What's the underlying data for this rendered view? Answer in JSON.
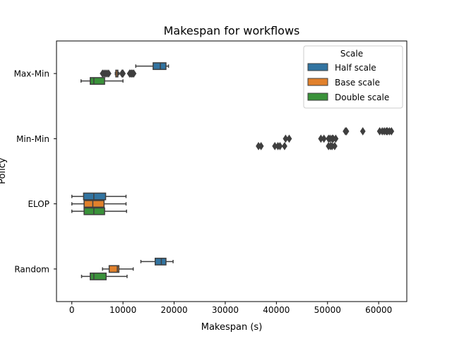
{
  "chart_data": {
    "type": "box",
    "orientation": "horizontal",
    "title": "Makespan for workflows",
    "xlabel": "Makespan (s)",
    "ylabel": "Policy",
    "xlim": [
      -3000,
      65500
    ],
    "xticks": [
      0,
      10000,
      20000,
      30000,
      40000,
      50000,
      60000
    ],
    "xtick_labels": [
      "0",
      "10000",
      "20000",
      "30000",
      "40000",
      "50000",
      "60000"
    ],
    "categories": [
      "Max-Min",
      "Min-Min",
      "ELOP",
      "Random"
    ],
    "legend": {
      "title": "Scale",
      "position": "upper-right"
    },
    "grid": false,
    "series": [
      {
        "name": "Half scale",
        "color": "#3274a1",
        "boxes": [
          {
            "category": "Max-Min",
            "whisker_low": 12500,
            "q1": 15900,
            "median": 17300,
            "q3": 18400,
            "whisker_high": 18900,
            "outliers": []
          },
          {
            "category": "Min-Min",
            "whisker_low": null,
            "q1": null,
            "median": null,
            "q3": null,
            "whisker_high": null,
            "outliers": [
              53500,
              53700,
              56900,
              60200,
              60700,
              61100,
              61500,
              61700,
              62100,
              62500
            ]
          },
          {
            "category": "ELOP",
            "whisker_low": 0,
            "q1": 2300,
            "median": 4300,
            "q3": 6600,
            "whisker_high": 10600,
            "outliers": []
          },
          {
            "category": "Random",
            "whisker_low": 13500,
            "q1": 16300,
            "median": 17500,
            "q3": 18400,
            "whisker_high": 19800,
            "outliers": []
          }
        ]
      },
      {
        "name": "Base scale",
        "color": "#e1812c",
        "boxes": [
          {
            "category": "Max-Min",
            "whisker_low": 8500,
            "q1": 8600,
            "median": 8900,
            "q3": 9000,
            "whisker_high": 9200,
            "outliers": [
              6000,
              6300,
              6600,
              6900,
              7200,
              9800,
              9900,
              10000,
              11300,
              11500,
              11700,
              11900,
              12100
            ]
          },
          {
            "category": "Min-Min",
            "whisker_low": null,
            "q1": null,
            "median": null,
            "q3": null,
            "whisker_high": null,
            "outliers": [
              41800,
              42500,
              48700,
              49300,
              50200,
              50500,
              50900,
              51100,
              51600
            ]
          },
          {
            "category": "ELOP",
            "whisker_low": 0,
            "q1": 2400,
            "median": 4100,
            "q3": 6300,
            "whisker_high": 10600,
            "outliers": []
          },
          {
            "category": "Random",
            "whisker_low": 6000,
            "q1": 7300,
            "median": 8900,
            "q3": 9200,
            "whisker_high": 12000,
            "outliers": []
          }
        ]
      },
      {
        "name": "Double scale",
        "color": "#3a923a",
        "boxes": [
          {
            "category": "Max-Min",
            "whisker_low": 1800,
            "q1": 3600,
            "median": 4300,
            "q3": 6400,
            "whisker_high": 10000,
            "outliers": []
          },
          {
            "category": "Min-Min",
            "whisker_low": null,
            "q1": null,
            "median": null,
            "q3": null,
            "whisker_high": null,
            "outliers": [
              36500,
              37000,
              39700,
              40300,
              40700,
              41600,
              50200,
              50600,
              50900,
              51400
            ]
          },
          {
            "category": "ELOP",
            "whisker_low": 0,
            "q1": 2400,
            "median": 4300,
            "q3": 6400,
            "whisker_high": 10700,
            "outliers": []
          },
          {
            "category": "Random",
            "whisker_low": 1900,
            "q1": 3600,
            "median": 4300,
            "q3": 6700,
            "whisker_high": 10800,
            "outliers": []
          }
        ]
      }
    ]
  }
}
